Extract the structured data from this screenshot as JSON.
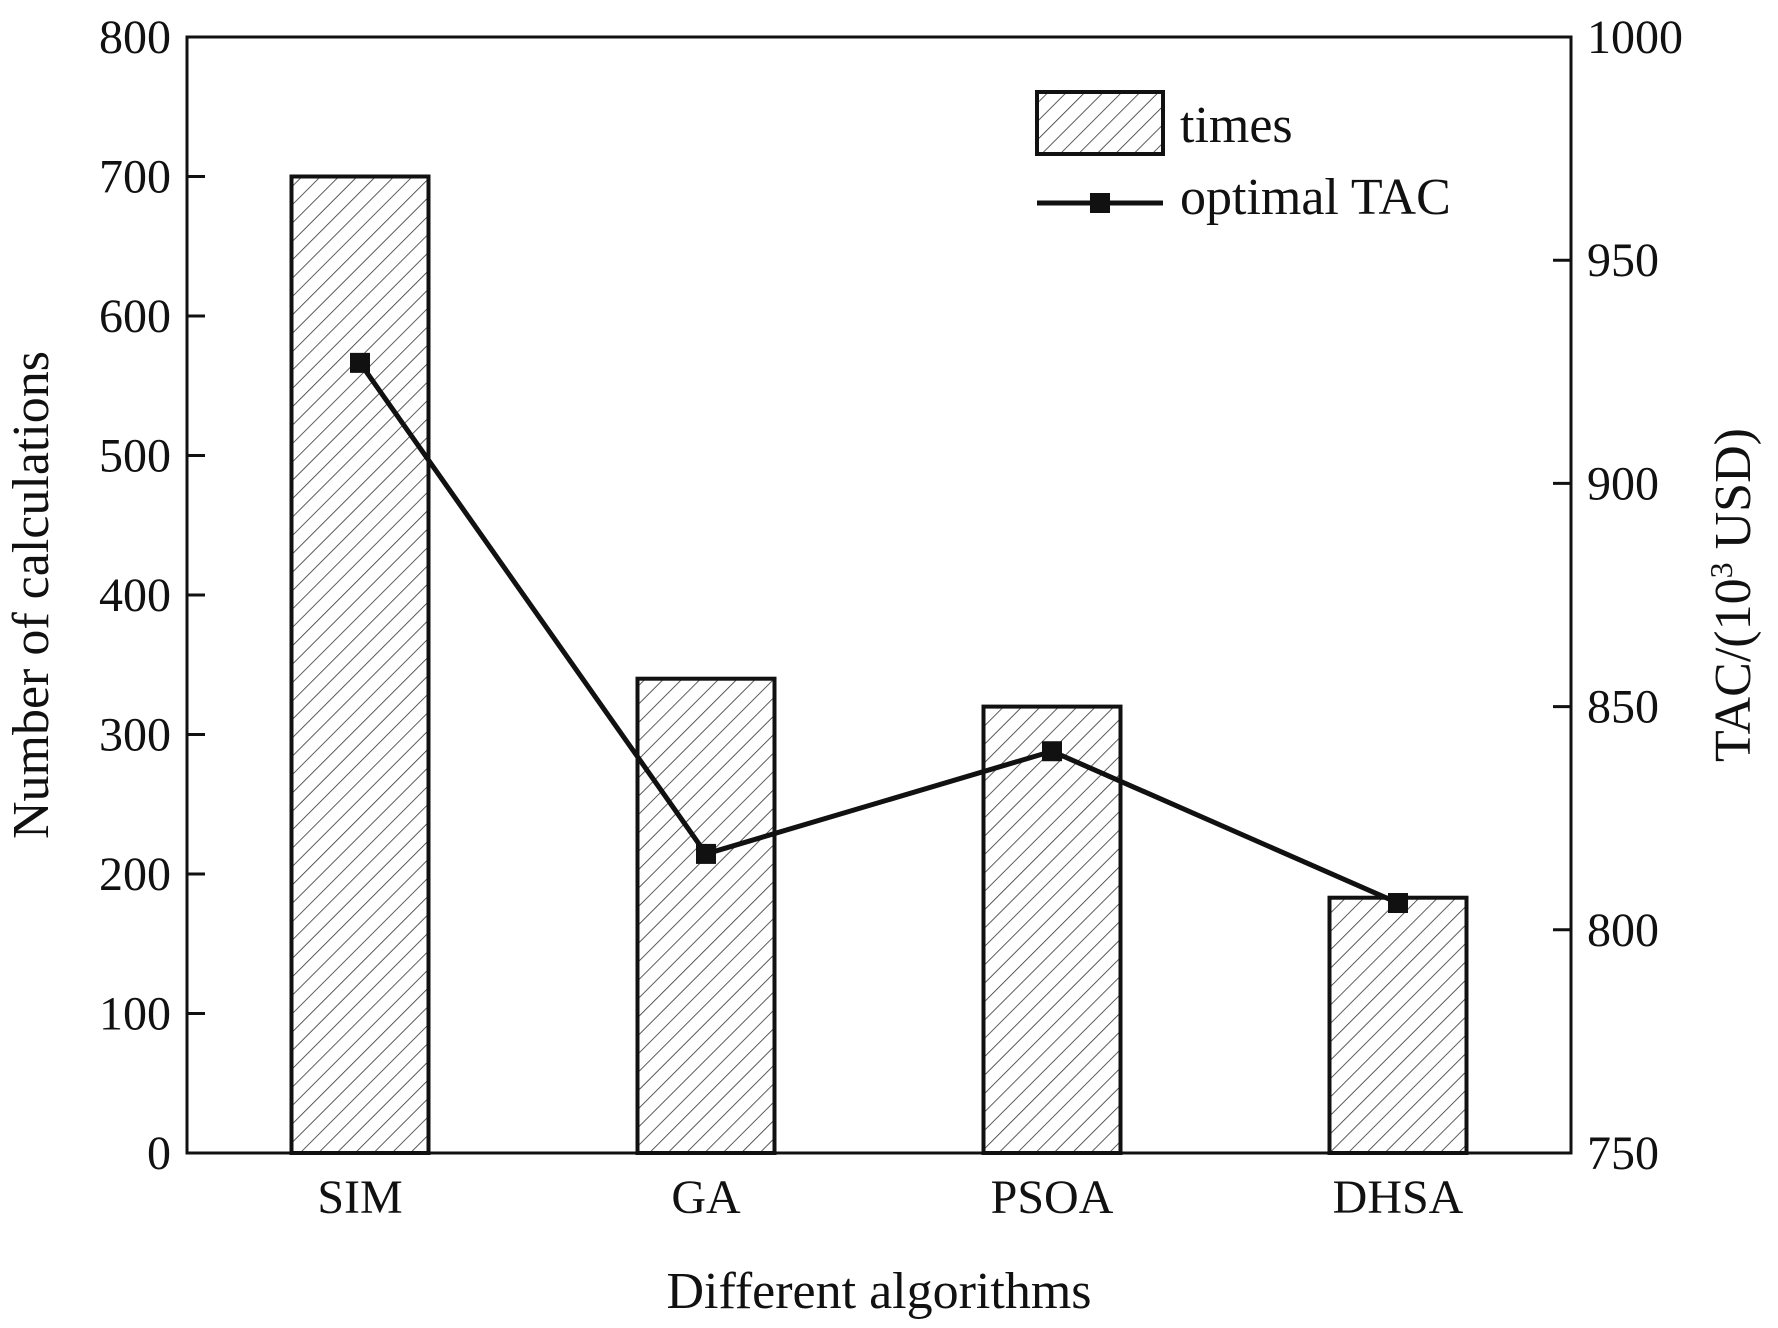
{
  "chart_data": {
    "type": "bar",
    "categories": [
      "SIM",
      "GA",
      "PSOA",
      "DHSA"
    ],
    "series": [
      {
        "name": "times",
        "type": "bar",
        "axis": "left",
        "values": [
          700,
          340,
          320,
          183
        ]
      },
      {
        "name": "optimal TAC",
        "type": "line",
        "axis": "right",
        "values": [
          927,
          817,
          840,
          806
        ]
      }
    ],
    "xlabel": "Different algorithms",
    "ylabel": "Number of calculations",
    "y2label_base": "TAC/(10",
    "y2label_sup": "3",
    "y2label_tail": " USD)",
    "ylim": [
      0,
      800
    ],
    "y2lim": [
      750,
      1000
    ],
    "yticks": [
      "0",
      "100",
      "200",
      "300",
      "400",
      "500",
      "600",
      "700",
      "800"
    ],
    "y2ticks": [
      "750",
      "800",
      "850",
      "900",
      "950",
      "1000"
    ],
    "legend_position": "top-right",
    "bar_fill": "hatched",
    "grid": false
  }
}
